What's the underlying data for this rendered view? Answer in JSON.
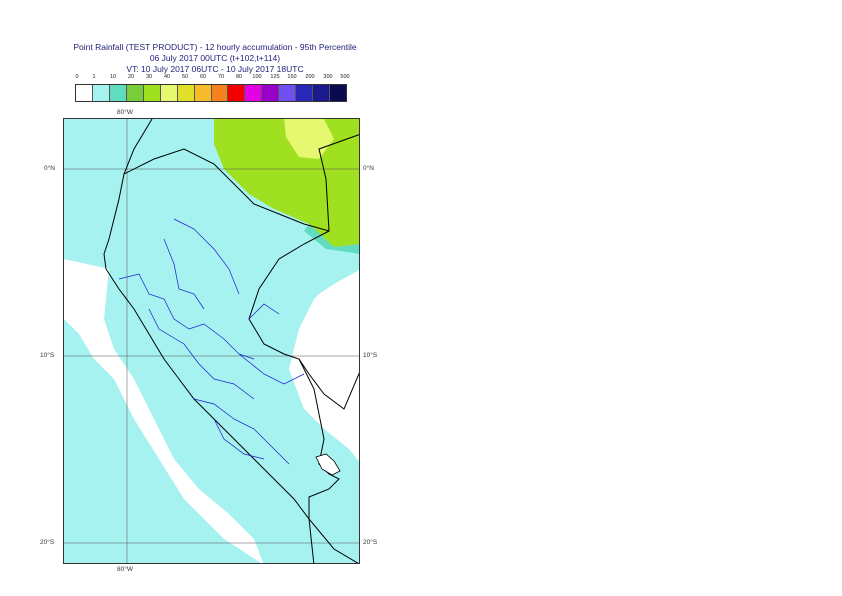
{
  "title": {
    "line1": "Point Rainfall (TEST PRODUCT) - 12 hourly accumulation - 95th Percentile",
    "line2": "06 July 2017 00UTC (t+102,t+114)",
    "line3": "VT: 10 July 2017 06UTC - 10 July 2017 18UTC"
  },
  "legend": {
    "ticks": [
      "0",
      "1",
      "10",
      "20",
      "30",
      "40",
      "50",
      "60",
      "70",
      "80",
      "100",
      "125",
      "150",
      "200",
      "300",
      "500"
    ],
    "colors": [
      "#ffffff",
      "#a6f2f0",
      "#62dcc0",
      "#7acd3a",
      "#9fe020",
      "#e5f870",
      "#e0e02a",
      "#f7bb2a",
      "#f5801e",
      "#f20000",
      "#e600e6",
      "#9a00c8",
      "#7050f0",
      "#2828b8",
      "#1a1a8c",
      "#0a0a50"
    ]
  },
  "axes": {
    "top_lon": "80°W",
    "bottom_lon": "80°W",
    "lat_0_left": "0°N",
    "lat_0_right": "0°N",
    "lat_10_left": "10°S",
    "lat_10_right": "10°S",
    "lat_20_left": "20°S",
    "lat_20_right": "20°S"
  },
  "colors": {
    "ocean_wash": "#a6f2f0",
    "light_rain": "#62dcc0",
    "moderate_rain": "#9fe020",
    "heavy_rain": "#e5f870",
    "coastline": "#000000",
    "admin_borders": "#1a1acc",
    "gridline": "#555555"
  }
}
